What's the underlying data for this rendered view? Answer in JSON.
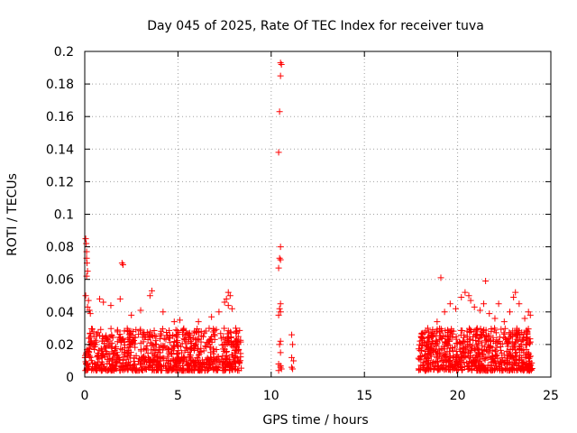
{
  "chart_data": {
    "type": "scatter",
    "title": "Day 045 of 2025, Rate Of TEC Index for receiver tuva",
    "xlabel": "GPS time / hours",
    "ylabel": "ROTI / TECUs",
    "xlim": [
      0,
      25
    ],
    "ylim": [
      0,
      0.2
    ],
    "xticks": [
      0,
      5,
      10,
      15,
      20,
      25
    ],
    "xtick_labels": [
      "0",
      "5",
      "10",
      "15",
      "20",
      "25"
    ],
    "yticks": [
      0,
      0.02,
      0.04,
      0.06,
      0.08,
      0.1,
      0.12,
      0.14,
      0.16,
      0.18,
      0.2
    ],
    "ytick_labels": [
      "0",
      "0.02",
      "0.04",
      "0.06",
      "0.08",
      "0.1",
      "0.12",
      "0.14",
      "0.16",
      "0.18",
      "0.2"
    ],
    "grid": true,
    "marker": "+",
    "color": "#ff0000",
    "series": [
      {
        "name": "ROTI",
        "dense_segments": [
          {
            "x_start": 0.0,
            "x_end": 8.4,
            "y_min": 0.004,
            "y_max": 0.03,
            "count": 900
          },
          {
            "x_start": 17.9,
            "x_end": 24.0,
            "y_min": 0.004,
            "y_max": 0.03,
            "count": 700
          }
        ],
        "points": [
          [
            0.05,
            0.085
          ],
          [
            0.08,
            0.082
          ],
          [
            0.1,
            0.077
          ],
          [
            0.1,
            0.073
          ],
          [
            0.12,
            0.07
          ],
          [
            0.15,
            0.065
          ],
          [
            0.1,
            0.062
          ],
          [
            0.05,
            0.05
          ],
          [
            0.2,
            0.047
          ],
          [
            0.15,
            0.043
          ],
          [
            0.25,
            0.041
          ],
          [
            0.3,
            0.039
          ],
          [
            0.8,
            0.048
          ],
          [
            1.0,
            0.046
          ],
          [
            1.4,
            0.044
          ],
          [
            1.9,
            0.048
          ],
          [
            2.0,
            0.07
          ],
          [
            2.05,
            0.069
          ],
          [
            2.5,
            0.038
          ],
          [
            3.0,
            0.041
          ],
          [
            3.5,
            0.05
          ],
          [
            3.6,
            0.053
          ],
          [
            4.2,
            0.04
          ],
          [
            4.8,
            0.034
          ],
          [
            5.1,
            0.035
          ],
          [
            6.1,
            0.034
          ],
          [
            6.8,
            0.037
          ],
          [
            7.2,
            0.04
          ],
          [
            7.5,
            0.046
          ],
          [
            7.6,
            0.048
          ],
          [
            7.7,
            0.052
          ],
          [
            7.8,
            0.05
          ],
          [
            7.7,
            0.044
          ],
          [
            7.9,
            0.042
          ],
          [
            8.1,
            0.03
          ],
          [
            10.5,
            0.193
          ],
          [
            10.55,
            0.192
          ],
          [
            10.5,
            0.185
          ],
          [
            10.45,
            0.163
          ],
          [
            10.4,
            0.138
          ],
          [
            10.5,
            0.08
          ],
          [
            10.45,
            0.073
          ],
          [
            10.5,
            0.072
          ],
          [
            10.4,
            0.067
          ],
          [
            10.5,
            0.045
          ],
          [
            10.45,
            0.042
          ],
          [
            10.5,
            0.04
          ],
          [
            10.4,
            0.038
          ],
          [
            10.5,
            0.022
          ],
          [
            10.45,
            0.02
          ],
          [
            10.5,
            0.015
          ],
          [
            10.4,
            0.008
          ],
          [
            10.5,
            0.006
          ],
          [
            10.55,
            0.005
          ],
          [
            10.4,
            0.004
          ],
          [
            10.5,
            0.007
          ],
          [
            11.1,
            0.026
          ],
          [
            11.15,
            0.02
          ],
          [
            11.1,
            0.012
          ],
          [
            11.2,
            0.01
          ],
          [
            11.1,
            0.006
          ],
          [
            11.15,
            0.005
          ],
          [
            18.1,
            0.027
          ],
          [
            18.4,
            0.03
          ],
          [
            18.9,
            0.034
          ],
          [
            19.1,
            0.061
          ],
          [
            19.3,
            0.04
          ],
          [
            19.6,
            0.045
          ],
          [
            19.9,
            0.042
          ],
          [
            20.2,
            0.049
          ],
          [
            20.4,
            0.052
          ],
          [
            20.6,
            0.05
          ],
          [
            20.7,
            0.047
          ],
          [
            20.9,
            0.043
          ],
          [
            21.2,
            0.041
          ],
          [
            21.4,
            0.045
          ],
          [
            21.5,
            0.059
          ],
          [
            21.7,
            0.039
          ],
          [
            22.0,
            0.036
          ],
          [
            22.2,
            0.045
          ],
          [
            22.5,
            0.034
          ],
          [
            22.8,
            0.04
          ],
          [
            23.0,
            0.049
          ],
          [
            23.1,
            0.052
          ],
          [
            23.3,
            0.045
          ],
          [
            23.6,
            0.036
          ],
          [
            23.8,
            0.04
          ],
          [
            23.9,
            0.038
          ]
        ]
      }
    ]
  }
}
